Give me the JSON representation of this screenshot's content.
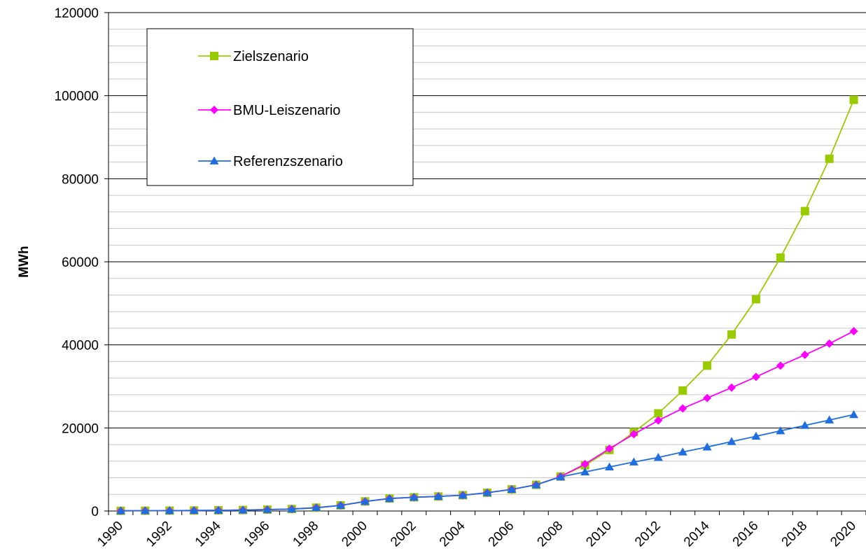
{
  "chart_data": {
    "type": "line",
    "title": "",
    "xlabel": "",
    "ylabel": "MWh",
    "ylim": [
      0,
      120000
    ],
    "yticks": [
      0,
      20000,
      40000,
      60000,
      80000,
      100000,
      120000
    ],
    "x": [
      1990,
      1991,
      1992,
      1993,
      1994,
      1995,
      1996,
      1997,
      1998,
      1999,
      2000,
      2001,
      2002,
      2003,
      2004,
      2005,
      2006,
      2007,
      2008,
      2009,
      2010,
      2011,
      2012,
      2013,
      2014,
      2015,
      2016,
      2017,
      2018,
      2019,
      2020
    ],
    "xtick_labels": [
      "1990",
      "1992",
      "1994",
      "1996",
      "1998",
      "2000",
      "2002",
      "2004",
      "2006",
      "2008",
      "2010",
      "2012",
      "2014",
      "2016",
      "2018",
      "2020"
    ],
    "grid": {
      "major_y": true,
      "minor_y": true,
      "x": false
    },
    "legend_position": "top-left",
    "series": [
      {
        "name": "Zielszenario",
        "color": "#99cc00",
        "marker": "square",
        "values": [
          50,
          70,
          90,
          120,
          170,
          230,
          330,
          470,
          800,
          1350,
          2300,
          3000,
          3300,
          3500,
          3800,
          4400,
          5200,
          6300,
          8300,
          11000,
          14700,
          19000,
          23500,
          29000,
          35000,
          42500,
          51000,
          61000,
          72200,
          84800,
          99000
        ]
      },
      {
        "name": "BMU-Leiszenario",
        "color": "#ff00ff",
        "marker": "diamond",
        "values": [
          50,
          70,
          90,
          120,
          170,
          230,
          330,
          470,
          800,
          1350,
          2300,
          3000,
          3300,
          3500,
          3800,
          4400,
          5200,
          6300,
          8300,
          11300,
          15000,
          18500,
          21800,
          24700,
          27200,
          29700,
          32300,
          35000,
          37600,
          40300,
          43300
        ]
      },
      {
        "name": "Referenzszenario",
        "color": "#1f6ee0",
        "marker": "triangle",
        "values": [
          50,
          70,
          90,
          120,
          170,
          230,
          330,
          470,
          800,
          1350,
          2300,
          3000,
          3300,
          3500,
          3800,
          4400,
          5200,
          6300,
          8200,
          9400,
          10600,
          11800,
          12900,
          14200,
          15400,
          16700,
          18000,
          19300,
          20600,
          21900,
          23200
        ]
      }
    ]
  }
}
